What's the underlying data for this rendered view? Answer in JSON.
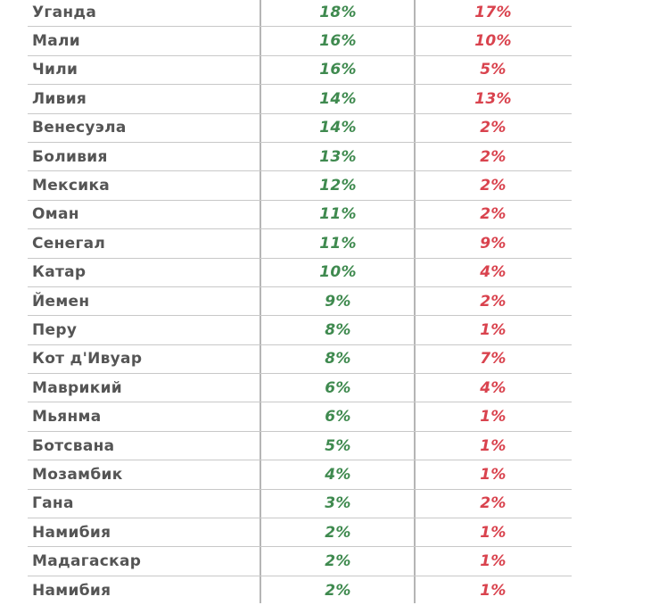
{
  "rows": [
    {
      "country": "Уганда",
      "col1": "18%",
      "col2": "17%"
    },
    {
      "country": "Мали",
      "col1": "16%",
      "col2": "10%"
    },
    {
      "country": "Чили",
      "col1": "16%",
      "col2": "5%"
    },
    {
      "country": "Ливия",
      "col1": "14%",
      "col2": "13%"
    },
    {
      "country": "Венесуэла",
      "col1": "14%",
      "col2": "2%"
    },
    {
      "country": "Боливия",
      "col1": "13%",
      "col2": "2%"
    },
    {
      "country": "Мексика",
      "col1": "12%",
      "col2": "2%"
    },
    {
      "country": "Оман",
      "col1": "11%",
      "col2": "2%"
    },
    {
      "country": "Сенегал",
      "col1": "11%",
      "col2": "9%"
    },
    {
      "country": "Катар",
      "col1": "10%",
      "col2": "4%"
    },
    {
      "country": "Йемен",
      "col1": "9%",
      "col2": "2%"
    },
    {
      "country": "Перу",
      "col1": "8%",
      "col2": "1%"
    },
    {
      "country": "Кот д'Ивуар",
      "col1": "8%",
      "col2": "7%"
    },
    {
      "country": "Маврикий",
      "col1": "6%",
      "col2": "4%"
    },
    {
      "country": "Мьянма",
      "col1": "6%",
      "col2": "1%"
    },
    {
      "country": "Ботсвана",
      "col1": "5%",
      "col2": "1%"
    },
    {
      "country": "Мозамбик",
      "col1": "4%",
      "col2": "1%"
    },
    {
      "country": "Гана",
      "col1": "3%",
      "col2": "2%"
    },
    {
      "country": "Намибия",
      "col1": "2%",
      "col2": "1%"
    },
    {
      "country": "Мадагаскар",
      "col1": "2%",
      "col2": "1%"
    },
    {
      "country": "Намибия",
      "col1": "2%",
      "col2": "1%"
    }
  ],
  "colors": {
    "country_text": "#555555",
    "col1_text": "#3f8a4f",
    "col2_text": "#d9434e",
    "divider": "#c8c8c8"
  }
}
